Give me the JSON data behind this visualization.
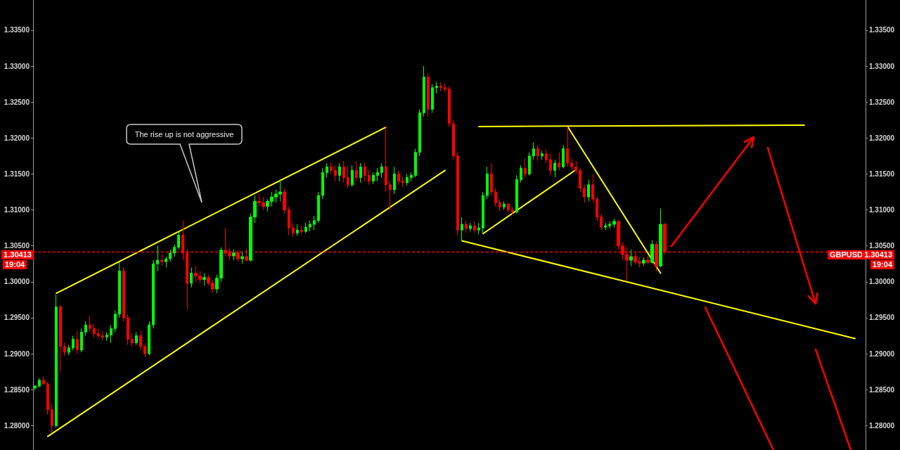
{
  "chart_data": {
    "type": "candlestick",
    "categories": [
      null,
      null,
      null,
      null,
      null,
      null,
      null,
      null,
      null,
      null,
      null,
      null,
      null,
      null,
      null,
      null,
      null,
      null,
      null,
      null,
      null,
      null,
      null,
      null,
      null,
      null,
      null,
      null,
      null,
      null,
      null,
      null,
      null,
      null,
      null,
      null,
      null,
      null,
      null,
      null,
      null,
      null,
      null,
      null,
      null,
      null,
      null,
      null,
      null,
      null,
      null,
      null,
      null,
      null,
      null,
      null,
      null,
      null,
      null,
      null,
      null,
      null,
      null,
      null,
      null,
      null,
      null,
      null,
      null,
      null,
      null,
      null,
      null,
      null,
      null,
      null,
      null,
      null,
      null,
      null,
      null,
      null,
      null,
      null,
      null,
      null,
      null,
      null,
      null,
      null,
      null,
      null,
      null,
      null,
      null,
      null,
      null,
      null,
      null,
      null,
      null,
      null,
      null,
      null,
      null,
      null,
      null,
      null,
      null,
      null,
      null,
      null,
      null,
      null,
      null,
      null,
      null,
      null,
      null,
      null,
      null,
      null,
      null,
      null,
      null,
      null,
      null,
      null,
      null,
      null,
      null,
      null,
      null,
      null,
      null,
      null,
      null,
      null,
      null,
      null,
      null,
      null,
      null,
      null,
      null,
      null,
      null,
      null,
      null,
      null,
      null,
      null,
      null,
      null,
      null,
      null,
      null,
      null,
      null,
      null,
      null,
      null,
      null,
      null,
      null,
      null,
      null,
      null,
      null,
      null,
      null,
      null,
      null,
      null,
      null,
      null,
      null,
      null,
      null,
      null,
      null,
      null,
      null,
      null,
      null,
      null,
      null,
      null,
      null,
      null,
      null,
      null,
      null,
      null,
      null,
      null,
      null
    ],
    "ohlc": [
      [
        1.2852,
        1.2856,
        1.2849,
        1.2855
      ],
      [
        1.2855,
        1.2866,
        1.2853,
        1.2863
      ],
      [
        1.2863,
        1.2868,
        1.2856,
        1.2858
      ],
      [
        1.2858,
        1.286,
        1.2815,
        1.2822
      ],
      [
        1.2822,
        1.283,
        1.279,
        1.28
      ],
      [
        1.28,
        1.2982,
        1.2797,
        1.2965
      ],
      [
        1.2965,
        1.2968,
        1.2875,
        1.291
      ],
      [
        1.291,
        1.2915,
        1.2897,
        1.2902
      ],
      [
        1.2902,
        1.2912,
        1.2898,
        1.2908
      ],
      [
        1.2908,
        1.2925,
        1.2905,
        1.292
      ],
      [
        1.292,
        1.2932,
        1.29,
        1.2905
      ],
      [
        1.2905,
        1.2935,
        1.2902,
        1.293
      ],
      [
        1.293,
        1.2945,
        1.2925,
        1.294
      ],
      [
        1.294,
        1.2953,
        1.293,
        1.2935
      ],
      [
        1.2935,
        1.2942,
        1.2922,
        1.2928
      ],
      [
        1.2928,
        1.2935,
        1.2921,
        1.2925
      ],
      [
        1.2925,
        1.2932,
        1.2919,
        1.2923
      ],
      [
        1.2923,
        1.293,
        1.2918,
        1.2926
      ],
      [
        1.2926,
        1.294,
        1.2915,
        1.2935
      ],
      [
        1.2935,
        1.296,
        1.293,
        1.2955
      ],
      [
        1.2955,
        1.3027,
        1.295,
        1.3015
      ],
      [
        1.3015,
        1.302,
        1.2945,
        1.295
      ],
      [
        1.295,
        1.2955,
        1.2912,
        1.292
      ],
      [
        1.292,
        1.2928,
        1.291,
        1.2915
      ],
      [
        1.2915,
        1.293,
        1.2912,
        1.2925
      ],
      [
        1.2925,
        1.2932,
        1.2905,
        1.291
      ],
      [
        1.291,
        1.2915,
        1.2895,
        1.29
      ],
      [
        1.29,
        1.2945,
        1.2898,
        1.294
      ],
      [
        1.294,
        1.303,
        1.2935,
        1.3025
      ],
      [
        1.3025,
        1.305,
        1.3015,
        1.303
      ],
      [
        1.303,
        1.3038,
        1.3022,
        1.3028
      ],
      [
        1.3028,
        1.3035,
        1.302,
        1.3032
      ],
      [
        1.3032,
        1.3045,
        1.3028,
        1.304
      ],
      [
        1.304,
        1.3052,
        1.3035,
        1.3048
      ],
      [
        1.3048,
        1.307,
        1.3045,
        1.3065
      ],
      [
        1.3065,
        1.3085,
        1.303,
        1.304
      ],
      [
        1.304,
        1.3045,
        1.2962,
        1.2998
      ],
      [
        1.2998,
        1.302,
        1.2992,
        1.3012
      ],
      [
        1.3012,
        1.3022,
        1.3,
        1.3008
      ],
      [
        1.3008,
        1.3015,
        1.2998,
        1.3003
      ],
      [
        1.3003,
        1.3012,
        1.2995,
        1.3006
      ],
      [
        1.3006,
        1.301,
        1.2995,
        1.2998
      ],
      [
        1.2998,
        1.3003,
        1.2985,
        1.299
      ],
      [
        1.299,
        1.301,
        1.2984,
        1.3005
      ],
      [
        1.3005,
        1.3048,
        1.3,
        1.3044
      ],
      [
        1.3044,
        1.3075,
        1.3035,
        1.304
      ],
      [
        1.304,
        1.3048,
        1.303,
        1.3036
      ],
      [
        1.3036,
        1.3045,
        1.303,
        1.304
      ],
      [
        1.304,
        1.3044,
        1.3028,
        1.3032
      ],
      [
        1.3032,
        1.3042,
        1.3025,
        1.3035
      ],
      [
        1.3035,
        1.3046,
        1.3028,
        1.303
      ],
      [
        1.303,
        1.3095,
        1.3028,
        1.309
      ],
      [
        1.309,
        1.312,
        1.3082,
        1.3112
      ],
      [
        1.3112,
        1.3122,
        1.3105,
        1.311
      ],
      [
        1.311,
        1.3118,
        1.31,
        1.3105
      ],
      [
        1.3105,
        1.3115,
        1.3098,
        1.3112
      ],
      [
        1.3112,
        1.3125,
        1.3105,
        1.3118
      ],
      [
        1.3118,
        1.3128,
        1.311,
        1.3122
      ],
      [
        1.3122,
        1.3143,
        1.3112,
        1.3125
      ],
      [
        1.3125,
        1.313,
        1.3095,
        1.31
      ],
      [
        1.31,
        1.3105,
        1.3065,
        1.3075
      ],
      [
        1.3075,
        1.3082,
        1.3062,
        1.3068
      ],
      [
        1.3068,
        1.308,
        1.3064,
        1.3072
      ],
      [
        1.3072,
        1.3078,
        1.3066,
        1.307
      ],
      [
        1.307,
        1.3082,
        1.3068,
        1.3076
      ],
      [
        1.3076,
        1.3085,
        1.307,
        1.308
      ],
      [
        1.308,
        1.3092,
        1.3072,
        1.3085
      ],
      [
        1.3085,
        1.3125,
        1.3082,
        1.312
      ],
      [
        1.312,
        1.3158,
        1.3115,
        1.3152
      ],
      [
        1.3152,
        1.3165,
        1.3145,
        1.316
      ],
      [
        1.316,
        1.3166,
        1.315,
        1.3155
      ],
      [
        1.3155,
        1.3162,
        1.314,
        1.3148
      ],
      [
        1.3148,
        1.3165,
        1.314,
        1.316
      ],
      [
        1.316,
        1.3168,
        1.3138,
        1.3145
      ],
      [
        1.3145,
        1.316,
        1.313,
        1.3135
      ],
      [
        1.3135,
        1.3162,
        1.3132,
        1.3155
      ],
      [
        1.3155,
        1.3168,
        1.314,
        1.3145
      ],
      [
        1.3145,
        1.3165,
        1.3138,
        1.316
      ],
      [
        1.316,
        1.3166,
        1.314,
        1.3148
      ],
      [
        1.3148,
        1.3155,
        1.3135,
        1.314
      ],
      [
        1.314,
        1.3152,
        1.3136,
        1.3148
      ],
      [
        1.3148,
        1.3158,
        1.314,
        1.3152
      ],
      [
        1.3152,
        1.3165,
        1.3145,
        1.316
      ],
      [
        1.316,
        1.3216,
        1.3125,
        1.3135
      ],
      [
        1.3135,
        1.314,
        1.31,
        1.3128
      ],
      [
        1.3128,
        1.316,
        1.3122,
        1.315
      ],
      [
        1.315,
        1.3155,
        1.3135,
        1.314
      ],
      [
        1.314,
        1.3146,
        1.3132,
        1.3138
      ],
      [
        1.3138,
        1.315,
        1.3134,
        1.3145
      ],
      [
        1.3145,
        1.3152,
        1.314,
        1.3148
      ],
      [
        1.3148,
        1.3185,
        1.3145,
        1.318
      ],
      [
        1.318,
        1.324,
        1.3175,
        1.3235
      ],
      [
        1.3235,
        1.33,
        1.323,
        1.3285
      ],
      [
        1.3285,
        1.329,
        1.323,
        1.324
      ],
      [
        1.324,
        1.3275,
        1.3235,
        1.327
      ],
      [
        1.327,
        1.3278,
        1.3262,
        1.3272
      ],
      [
        1.3272,
        1.3278,
        1.3265,
        1.327
      ],
      [
        1.327,
        1.3276,
        1.3264,
        1.3268
      ],
      [
        1.3268,
        1.3272,
        1.3215,
        1.322
      ],
      [
        1.322,
        1.3225,
        1.317,
        1.3175
      ],
      [
        1.3175,
        1.318,
        1.3065,
        1.3072
      ],
      [
        1.3072,
        1.309,
        1.3056,
        1.308
      ],
      [
        1.308,
        1.3085,
        1.3068,
        1.3074
      ],
      [
        1.3074,
        1.3082,
        1.307,
        1.3078
      ],
      [
        1.3078,
        1.3084,
        1.3068,
        1.3072
      ],
      [
        1.3072,
        1.3082,
        1.3066,
        1.3075
      ],
      [
        1.3075,
        1.3125,
        1.3068,
        1.312
      ],
      [
        1.312,
        1.316,
        1.3115,
        1.315
      ],
      [
        1.315,
        1.3165,
        1.312,
        1.3125
      ],
      [
        1.3125,
        1.313,
        1.3105,
        1.311
      ],
      [
        1.311,
        1.3115,
        1.3098,
        1.3104
      ],
      [
        1.3104,
        1.3112,
        1.31,
        1.3108
      ],
      [
        1.3108,
        1.311,
        1.3096,
        1.31
      ],
      [
        1.31,
        1.3104,
        1.3094,
        1.3097
      ],
      [
        1.3097,
        1.3148,
        1.3095,
        1.3142
      ],
      [
        1.3142,
        1.3162,
        1.3138,
        1.3158
      ],
      [
        1.3158,
        1.3172,
        1.3145,
        1.315
      ],
      [
        1.315,
        1.318,
        1.3148,
        1.3175
      ],
      [
        1.3175,
        1.3194,
        1.317,
        1.3185
      ],
      [
        1.3185,
        1.319,
        1.3168,
        1.3175
      ],
      [
        1.3175,
        1.3182,
        1.317,
        1.3178
      ],
      [
        1.3178,
        1.3184,
        1.3165,
        1.317
      ],
      [
        1.317,
        1.3178,
        1.3148,
        1.3155
      ],
      [
        1.3155,
        1.317,
        1.3145,
        1.3165
      ],
      [
        1.3165,
        1.318,
        1.3155,
        1.316
      ],
      [
        1.316,
        1.319,
        1.3158,
        1.3185
      ],
      [
        1.3185,
        1.3216,
        1.316,
        1.3165
      ],
      [
        1.3165,
        1.3172,
        1.3155,
        1.316
      ],
      [
        1.316,
        1.3168,
        1.315,
        1.3155
      ],
      [
        1.3155,
        1.3158,
        1.3125,
        1.313
      ],
      [
        1.313,
        1.3135,
        1.311,
        1.3118
      ],
      [
        1.3118,
        1.3142,
        1.3112,
        1.3135
      ],
      [
        1.3135,
        1.315,
        1.311,
        1.3115
      ],
      [
        1.3115,
        1.3118,
        1.3085,
        1.309
      ],
      [
        1.309,
        1.3094,
        1.3072,
        1.3076
      ],
      [
        1.3076,
        1.3082,
        1.3072,
        1.3078
      ],
      [
        1.3078,
        1.3084,
        1.3074,
        1.308
      ],
      [
        1.308,
        1.3088,
        1.3075,
        1.3084
      ],
      [
        1.3084,
        1.3086,
        1.3045,
        1.305
      ],
      [
        1.305,
        1.3055,
        1.303,
        1.3038
      ],
      [
        1.3038,
        1.3048,
        1.3002,
        1.303
      ],
      [
        1.303,
        1.3045,
        1.3022,
        1.3035
      ],
      [
        1.3035,
        1.304,
        1.3024,
        1.3028
      ],
      [
        1.3028,
        1.3034,
        1.302,
        1.3026
      ],
      [
        1.3026,
        1.3034,
        1.3022,
        1.303
      ],
      [
        1.303,
        1.3036,
        1.3024,
        1.3027
      ],
      [
        1.3027,
        1.3058,
        1.3025,
        1.3052
      ],
      [
        1.3052,
        1.3056,
        1.3015,
        1.3022
      ],
      [
        1.3022,
        1.3102,
        1.302,
        1.308
      ],
      [
        1.308,
        1.3082,
        1.3038,
        1.30413
      ],
      null,
      null,
      null,
      null,
      null,
      null,
      null,
      null,
      null,
      null,
      null,
      null,
      null,
      null,
      null,
      null,
      null,
      null,
      null,
      null,
      null,
      null,
      null,
      null,
      null,
      null,
      null,
      null,
      null,
      null,
      null,
      null,
      null,
      null,
      null,
      null,
      null,
      null,
      null,
      null,
      null,
      null,
      null,
      null,
      null,
      null,
      null
    ],
    "colors": [
      "#00ff00",
      "#00ff00",
      "#ff0000",
      "#ff0000",
      "#ff0000",
      "#00ff00",
      "#ff0000",
      "#ff0000",
      "#00ff00",
      "#00ff00",
      "#ff0000",
      "#00ff00",
      "#00ff00",
      "#ff0000",
      "#ff0000",
      "#ff0000",
      "#ff0000",
      "#00ff00",
      "#00ff00",
      "#00ff00",
      "#00ff00",
      "#ff0000",
      "#ff0000",
      "#ff0000",
      "#00ff00",
      "#ff0000",
      "#ff0000",
      "#00ff00",
      "#00ff00",
      "#00ff00",
      "#ff0000",
      "#00ff00",
      "#00ff00",
      "#00ff00",
      "#00ff00",
      "#ff0000",
      "#ff0000",
      "#00ff00",
      "#ff0000",
      "#ff0000",
      "#00ff00",
      "#ff0000",
      "#ff0000",
      "#00ff00",
      "#00ff00",
      "#ff0000",
      "#ff0000",
      "#00ff00",
      "#ff0000",
      "#00ff00",
      "#ff0000",
      "#00ff00",
      "#00ff00",
      "#ff0000",
      "#ff0000",
      "#00ff00",
      "#00ff00",
      "#00ff00",
      "#00ff00",
      "#ff0000",
      "#ff0000",
      "#ff0000",
      "#00ff00",
      "#ff0000",
      "#00ff00",
      "#00ff00",
      "#00ff00",
      "#00ff00",
      "#00ff00",
      "#00ff00",
      "#ff0000",
      "#ff0000",
      "#00ff00",
      "#ff0000",
      "#ff0000",
      "#00ff00",
      "#ff0000",
      "#00ff00",
      "#ff0000",
      "#ff0000",
      "#00ff00",
      "#00ff00",
      "#00ff00",
      "#ff0000",
      "#ff0000",
      "#00ff00",
      "#ff0000",
      "#ff0000",
      "#00ff00",
      "#00ff00",
      "#00ff00",
      "#00ff00",
      "#00ff00",
      "#ff0000",
      "#00ff00",
      "#00ff00",
      "#ff0000",
      "#ff0000",
      "#ff0000",
      "#ff0000",
      "#ff0000",
      "#00ff00",
      "#ff0000",
      "#00ff00",
      "#ff0000",
      "#00ff00",
      "#00ff00",
      "#00ff00",
      "#ff0000",
      "#ff0000",
      "#ff0000",
      "#00ff00",
      "#ff0000",
      "#ff0000",
      "#00ff00",
      "#00ff00",
      "#ff0000",
      "#00ff00",
      "#00ff00",
      "#ff0000",
      "#00ff00",
      "#ff0000",
      "#ff0000",
      "#00ff00",
      "#ff0000",
      "#00ff00",
      "#ff0000",
      "#ff0000",
      "#ff0000",
      "#ff0000",
      "#ff0000",
      "#00ff00",
      "#ff0000",
      "#ff0000",
      "#ff0000",
      "#00ff00",
      "#00ff00",
      "#00ff00",
      "#ff0000",
      "#ff0000",
      "#ff0000",
      "#00ff00",
      "#ff0000",
      "#ff0000",
      "#00ff00",
      "#ff0000",
      "#00ff00",
      "#ff0000",
      "#00ff00",
      "#ff0000",
      null,
      null,
      null,
      null,
      null,
      null,
      null,
      null,
      null,
      null,
      null,
      null,
      null,
      null,
      null,
      null,
      null,
      null,
      null,
      null,
      null,
      null,
      null,
      null,
      null,
      null,
      null,
      null,
      null,
      null,
      null,
      null,
      null,
      null,
      null,
      null,
      null,
      null,
      null,
      null,
      null,
      null,
      null,
      null,
      null,
      null,
      null
    ],
    "series": [
      {
        "type": "line",
        "color": "#ffff00",
        "values": [
          null,
          null,
          null,
          null,
          null,
          1.2984,
          null,
          null,
          null,
          null,
          null,
          null,
          null,
          null,
          null,
          null,
          null,
          null,
          null,
          null,
          null,
          null,
          null,
          null,
          null,
          null,
          null,
          null,
          null,
          null,
          null,
          null,
          null,
          null,
          null,
          null,
          null,
          null,
          null,
          null,
          null,
          null,
          null,
          null,
          null,
          null,
          null,
          null,
          null,
          null,
          null,
          null,
          null,
          null,
          null,
          null,
          null,
          null,
          null,
          null,
          null,
          null,
          null,
          null,
          null,
          null,
          null,
          null,
          null,
          null,
          null,
          null,
          null,
          null,
          null,
          null,
          null,
          null,
          null,
          null,
          null,
          null,
          null,
          1.3215,
          null,
          null,
          null,
          null,
          null,
          null,
          null,
          null,
          null,
          null,
          null,
          null,
          null,
          null,
          null,
          null,
          null,
          null,
          null,
          null,
          null,
          null,
          null,
          null,
          null,
          null,
          null,
          null,
          null,
          null,
          null,
          null,
          null,
          null,
          null,
          null,
          null,
          null,
          null,
          null,
          null,
          null,
          null,
          null,
          null,
          null,
          null,
          null,
          null,
          null,
          null,
          null,
          null,
          null,
          null,
          null,
          null,
          null,
          null,
          null,
          null,
          null,
          null,
          null,
          null,
          null,
          null,
          null,
          null,
          null,
          null,
          null,
          null,
          null,
          null,
          null,
          null,
          null,
          null,
          null,
          null,
          null,
          null,
          null,
          null,
          null,
          null,
          null,
          null,
          null,
          null,
          null,
          null,
          null,
          null,
          null,
          null,
          null,
          null,
          null,
          null,
          null,
          null,
          null,
          null,
          null,
          null,
          null,
          null,
          null,
          null,
          null,
          null
        ]
      },
      {
        "type": "line",
        "color": "#ffff00",
        "values": [
          null,
          null,
          null,
          1.2785,
          null,
          null,
          null,
          null,
          null,
          null,
          null,
          null,
          null,
          null,
          null,
          null,
          null,
          null,
          null,
          null,
          null,
          null,
          null,
          null,
          null,
          null,
          null,
          null,
          null,
          null,
          null,
          null,
          null,
          null,
          null,
          null,
          null,
          null,
          null,
          null,
          null,
          null,
          null,
          null,
          null,
          null,
          null,
          null,
          null,
          null,
          null,
          null,
          null,
          null,
          null,
          null,
          null,
          null,
          null,
          null,
          null,
          null,
          null,
          null,
          null,
          null,
          null,
          null,
          null,
          null,
          null,
          null,
          null,
          null,
          null,
          null,
          null,
          null,
          null,
          null,
          null,
          null,
          null,
          null,
          null,
          null,
          null,
          null,
          null,
          null,
          null,
          null,
          null,
          null,
          null,
          null,
          null,
          1.3155,
          null,
          null,
          null,
          null,
          null,
          null,
          null,
          null,
          null,
          null,
          null,
          null,
          null,
          null,
          null,
          null,
          null,
          null,
          null,
          null,
          null,
          null,
          null,
          null,
          null,
          null,
          null,
          null,
          null,
          null,
          null,
          null,
          null,
          null,
          null,
          null,
          null,
          null,
          null,
          null,
          null,
          null,
          null,
          null,
          null,
          null,
          null,
          null,
          null,
          null,
          null,
          null,
          null,
          null,
          null,
          null,
          null,
          null,
          null,
          null,
          null,
          null,
          null,
          null,
          null,
          null,
          null,
          null,
          null,
          null,
          null,
          null,
          null,
          null,
          null,
          null,
          null,
          null,
          null,
          null,
          null,
          null,
          null,
          null,
          null,
          null,
          null,
          null,
          null,
          null,
          null,
          null,
          null,
          null,
          null,
          null,
          null,
          null,
          null
        ]
      },
      {
        "type": "line",
        "color": "#ffff00",
        "values": [
          null,
          null,
          null,
          null,
          null,
          null,
          null,
          null,
          null,
          null,
          null,
          null,
          null,
          null,
          null,
          null,
          null,
          null,
          null,
          null,
          null,
          null,
          null,
          null,
          null,
          null,
          null,
          null,
          null,
          null,
          null,
          null,
          null,
          null,
          null,
          null,
          null,
          null,
          null,
          null,
          null,
          null,
          null,
          null,
          null,
          null,
          null,
          null,
          null,
          null,
          null,
          null,
          null,
          null,
          null,
          null,
          null,
          null,
          null,
          null,
          null,
          null,
          null,
          null,
          null,
          null,
          null,
          null,
          null,
          null,
          null,
          null,
          null,
          null,
          null,
          null,
          null,
          null,
          null,
          null,
          null,
          null,
          null,
          null,
          null,
          null,
          null,
          null,
          null,
          null,
          null,
          null,
          null,
          null,
          null,
          null,
          null,
          null,
          null,
          null,
          null,
          null,
          null,
          null,
          null,
          1.3216,
          null,
          null,
          null,
          null,
          null,
          null,
          null,
          null,
          null,
          null,
          null,
          null,
          null,
          null,
          null,
          null,
          null,
          null,
          null,
          null,
          null,
          null,
          null,
          null,
          null,
          null,
          null,
          null,
          null,
          null,
          null,
          null,
          null,
          null,
          null,
          null,
          null,
          null,
          null,
          null,
          null,
          null,
          null,
          null,
          null,
          null,
          null,
          null,
          null,
          null,
          null,
          null,
          null,
          null,
          null,
          null,
          null,
          null,
          null,
          null,
          null,
          null,
          null,
          null,
          null,
          null,
          null,
          null,
          null,
          null,
          null,
          null,
          null,
          null,
          null,
          null,
          1.3218,
          null,
          null,
          null,
          null,
          null,
          null,
          null,
          null,
          null,
          null,
          null,
          null,
          null,
          null
        ]
      },
      {
        "type": "line",
        "color": "#ffff00",
        "values": [
          null,
          null,
          null,
          null,
          null,
          null,
          null,
          null,
          null,
          null,
          null,
          null,
          null,
          null,
          null,
          null,
          null,
          null,
          null,
          null,
          null,
          null,
          null,
          null,
          null,
          null,
          null,
          null,
          null,
          null,
          null,
          null,
          null,
          null,
          null,
          null,
          null,
          null,
          null,
          null,
          null,
          null,
          null,
          null,
          null,
          null,
          null,
          null,
          null,
          null,
          null,
          null,
          null,
          null,
          null,
          null,
          null,
          null,
          null,
          null,
          null,
          null,
          null,
          null,
          null,
          null,
          null,
          null,
          null,
          null,
          null,
          null,
          null,
          null,
          null,
          null,
          null,
          null,
          null,
          null,
          null,
          null,
          null,
          null,
          null,
          null,
          null,
          null,
          null,
          null,
          null,
          null,
          null,
          null,
          null,
          null,
          null,
          null,
          null,
          null,
          null,
          1.3057,
          null,
          null,
          null,
          null,
          null,
          null,
          null,
          null,
          null,
          null,
          null,
          null,
          null,
          null,
          null,
          null,
          null,
          null,
          null,
          null,
          null,
          null,
          null,
          null,
          null,
          null,
          null,
          null,
          null,
          null,
          null,
          null,
          null,
          null,
          null,
          null,
          null,
          null,
          null,
          null,
          null,
          null,
          null,
          null,
          null,
          null,
          null,
          null,
          null,
          null,
          null,
          null,
          null,
          null,
          null,
          null,
          null,
          null,
          null,
          null,
          null,
          null,
          null,
          null,
          null,
          null,
          null,
          null,
          null,
          null,
          null,
          null,
          null,
          null,
          null,
          null,
          null,
          null,
          null,
          null,
          null,
          null,
          null,
          null,
          null,
          null,
          null,
          null,
          null,
          null,
          null,
          null,
          1.2921,
          null,
          null
        ]
      },
      {
        "type": "line",
        "color": "#ffff00",
        "values": [
          null,
          null,
          null,
          null,
          null,
          null,
          null,
          null,
          null,
          null,
          null,
          null,
          null,
          null,
          null,
          null,
          null,
          null,
          null,
          null,
          null,
          null,
          null,
          null,
          null,
          null,
          null,
          null,
          null,
          null,
          null,
          null,
          null,
          null,
          null,
          null,
          null,
          null,
          null,
          null,
          null,
          null,
          null,
          null,
          null,
          null,
          null,
          null,
          null,
          null,
          null,
          null,
          null,
          null,
          null,
          null,
          null,
          null,
          null,
          null,
          null,
          null,
          null,
          null,
          null,
          null,
          null,
          null,
          null,
          null,
          null,
          null,
          null,
          null,
          null,
          null,
          null,
          null,
          null,
          null,
          null,
          null,
          null,
          null,
          null,
          null,
          null,
          null,
          null,
          null,
          null,
          null,
          null,
          null,
          null,
          null,
          null,
          null,
          null,
          null,
          null,
          null,
          null,
          null,
          null,
          null,
          1.3067,
          null,
          null,
          null,
          null,
          null,
          null,
          null,
          null,
          null,
          null,
          null,
          null,
          null,
          null,
          null,
          null,
          null,
          null,
          null,
          null,
          null,
          1.3156,
          null,
          null,
          null,
          null,
          null,
          null,
          null,
          null,
          null,
          null,
          null,
          null,
          null,
          null,
          null,
          null,
          null,
          null,
          null,
          null,
          null,
          null,
          null,
          null,
          null,
          null,
          null,
          null,
          null,
          null,
          null,
          null,
          null,
          null,
          null,
          null,
          null,
          null,
          null,
          null,
          null,
          null,
          null,
          null,
          null,
          null,
          null,
          null,
          null,
          null,
          null,
          null,
          null,
          null,
          null,
          null,
          null,
          null,
          null,
          null,
          null,
          null,
          null,
          null,
          null,
          null,
          null,
          null
        ]
      },
      {
        "type": "line",
        "color": "#ffff00",
        "values": [
          null,
          null,
          null,
          null,
          null,
          null,
          null,
          null,
          null,
          null,
          null,
          null,
          null,
          null,
          null,
          null,
          null,
          null,
          null,
          null,
          null,
          null,
          null,
          null,
          null,
          null,
          null,
          null,
          null,
          null,
          null,
          null,
          null,
          null,
          null,
          null,
          null,
          null,
          null,
          null,
          null,
          null,
          null,
          null,
          null,
          null,
          null,
          null,
          null,
          null,
          null,
          null,
          null,
          null,
          null,
          null,
          null,
          null,
          null,
          null,
          null,
          null,
          null,
          null,
          null,
          null,
          null,
          null,
          null,
          null,
          null,
          null,
          null,
          null,
          null,
          null,
          null,
          null,
          null,
          null,
          null,
          null,
          null,
          null,
          null,
          null,
          null,
          null,
          null,
          null,
          null,
          null,
          null,
          null,
          null,
          null,
          null,
          null,
          null,
          null,
          null,
          null,
          null,
          null,
          null,
          null,
          null,
          null,
          null,
          null,
          null,
          null,
          null,
          null,
          null,
          null,
          null,
          null,
          null,
          null,
          null,
          null,
          null,
          null,
          null,
          null,
          1.3216,
          null,
          null,
          null,
          null,
          null,
          null,
          null,
          null,
          null,
          null,
          null,
          null,
          null,
          null,
          null,
          null,
          null,
          null,
          null,
          null,
          null,
          1.3012,
          null,
          null,
          null,
          null,
          null,
          null,
          null,
          null,
          null,
          null,
          null,
          null,
          null,
          null,
          null,
          null,
          null,
          null,
          null,
          null,
          null,
          null,
          null,
          null,
          null,
          null,
          null,
          null,
          null,
          null,
          null,
          null,
          null,
          null,
          null,
          null,
          null,
          null,
          null,
          null,
          null,
          null,
          null,
          null,
          null,
          null,
          null,
          null
        ]
      }
    ],
    "ylim": [
      1.2766,
      1.3392
    ],
    "yticks": [
      {
        "value": 1.28,
        "label": "1.28000"
      },
      {
        "value": 1.285,
        "label": "1.28500"
      },
      {
        "value": 1.29,
        "label": "1.29000"
      },
      {
        "value": 1.295,
        "label": "1.29500"
      },
      {
        "value": 1.3,
        "label": "1.30000"
      },
      {
        "value": 1.305,
        "label": "1.30500"
      },
      {
        "value": 1.31,
        "label": "1.31000"
      },
      {
        "value": 1.315,
        "label": "1.31500"
      },
      {
        "value": 1.32,
        "label": "1.32000"
      },
      {
        "value": 1.325,
        "label": "1.32500"
      },
      {
        "value": 1.33,
        "label": "1.33000"
      },
      {
        "value": 1.335,
        "label": "1.33500"
      }
    ],
    "y2lim": [
      1.2766,
      1.3392
    ],
    "y2ticks": [
      {
        "value": 1.28,
        "label": "1.28000"
      },
      {
        "value": 1.285,
        "label": "1.28500"
      },
      {
        "value": 1.29,
        "label": "1.29000"
      },
      {
        "value": 1.295,
        "label": "1.29500"
      },
      {
        "value": 1.3,
        "label": "1.30000"
      },
      {
        "value": 1.305,
        "label": "1.30500"
      },
      {
        "value": 1.31,
        "label": "1.31000"
      },
      {
        "value": 1.315,
        "label": "1.31500"
      },
      {
        "value": 1.32,
        "label": "1.32000"
      },
      {
        "value": 1.325,
        "label": "1.32500"
      },
      {
        "value": 1.33,
        "label": "1.33000"
      },
      {
        "value": 1.335,
        "label": "1.33500"
      }
    ],
    "ref_lines": [
      {
        "axis": "y",
        "value": 1.30413,
        "label": "1.30413",
        "color": "#ff0000",
        "line_style": "dashed"
      }
    ],
    "annotations": [
      "The rise up is not aggressive",
      "19:04",
      "GBPUSD",
      "1.30413",
      "19:04"
    ],
    "tick_labels": "y"
  }
}
